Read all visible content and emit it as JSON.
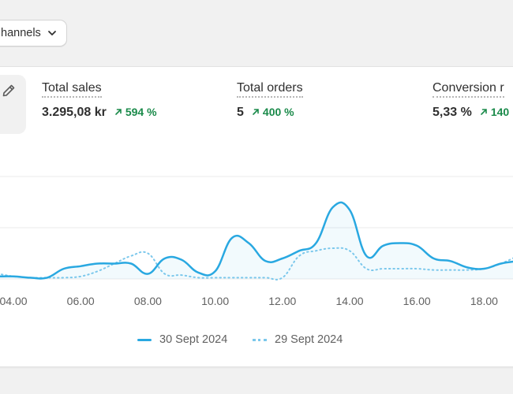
{
  "filter": {
    "channels_label": "hannels"
  },
  "metrics": [
    {
      "label": "Total sales",
      "value": "3.295,08 kr",
      "delta": "594 %"
    },
    {
      "label": "Total orders",
      "value": "5",
      "delta": "400 %"
    },
    {
      "label": "Conversion r",
      "value": "5,33 %",
      "delta": "140"
    }
  ],
  "colors": {
    "current": "#29a8e1",
    "previous": "#7cc8ec",
    "positive": "#1a8a4a"
  },
  "chart_data": {
    "type": "line",
    "x_ticks": [
      "04.00",
      "06.00",
      "08.00",
      "10.00",
      "12.00",
      "14.00",
      "16.00",
      "18.00"
    ],
    "x": [
      3,
      3.5,
      4,
      4.5,
      5,
      5.5,
      6,
      6.5,
      7,
      7.5,
      8,
      8.5,
      9,
      9.5,
      10,
      10.5,
      11,
      11.5,
      12,
      12.5,
      13,
      13.5,
      14,
      14.5,
      15,
      15.5,
      16,
      16.5,
      17,
      17.5,
      18,
      18.5,
      19
    ],
    "xlim": [
      3,
      19.2
    ],
    "ylim": [
      0,
      4
    ],
    "series": [
      {
        "name": "30 Sept 2024",
        "style": "solid",
        "values": [
          0.1,
          0.1,
          0.1,
          0.05,
          0.05,
          0.4,
          0.5,
          0.6,
          0.6,
          0.6,
          0.2,
          0.8,
          0.75,
          0.25,
          0.3,
          1.6,
          1.4,
          0.7,
          0.8,
          1.1,
          1.4,
          2.8,
          2.7,
          0.9,
          1.3,
          1.4,
          1.3,
          0.8,
          0.7,
          0.45,
          0.4,
          0.6,
          0.7
        ]
      },
      {
        "name": "29 Sept 2024",
        "style": "dotted",
        "values": [
          0.2,
          0.2,
          0.1,
          0.05,
          0.05,
          0.05,
          0.1,
          0.3,
          0.6,
          0.9,
          1.0,
          0.2,
          0.15,
          0.05,
          0.05,
          0.05,
          0.05,
          0.05,
          0.05,
          0.9,
          1.1,
          1.2,
          1.1,
          0.4,
          0.4,
          0.4,
          0.4,
          0.35,
          0.35,
          0.35,
          0.4,
          0.6,
          0.9
        ]
      }
    ],
    "legend": [
      "30 Sept 2024",
      "29 Sept 2024"
    ],
    "grid": true
  }
}
